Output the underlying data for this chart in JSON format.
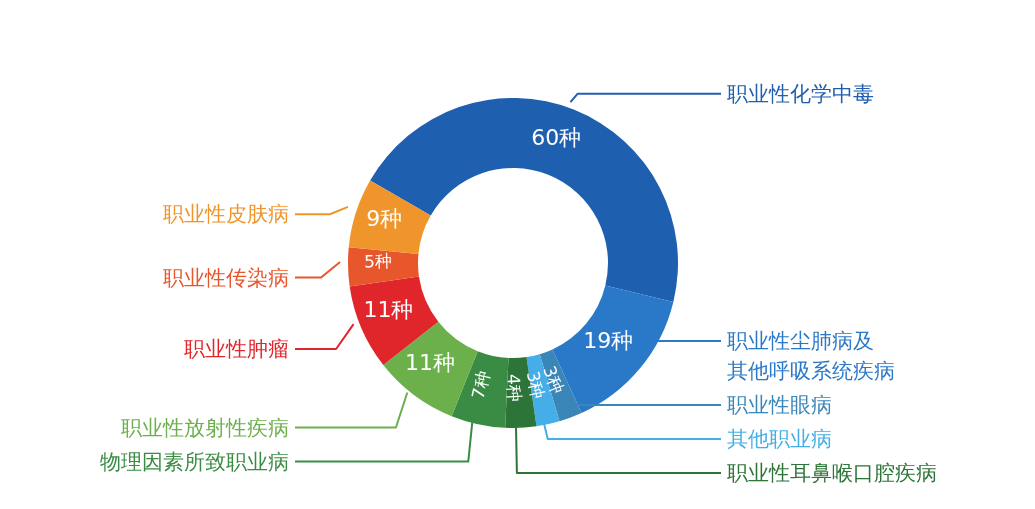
{
  "chart_data": {
    "type": "donut",
    "categories": [
      "职业性化学中毒",
      "职业性尘肺病及其他呼吸系统疾病",
      "职业性眼病",
      "其他职业病",
      "职业性耳鼻喉口腔疾病",
      "物理因素所致职业病",
      "职业性放射性疾病",
      "职业性肿瘤",
      "职业性传染病",
      "职业性皮肤病"
    ],
    "values": [
      60,
      19,
      3,
      3,
      4,
      7,
      11,
      11,
      5,
      9
    ],
    "value_labels": [
      "60种",
      "19种",
      "3种",
      "3种",
      "4种",
      "7种",
      "11种",
      "11种",
      "5种",
      "9种"
    ],
    "colors": [
      "#1f5fb0",
      "#2a78c8",
      "#3a86b8",
      "#45aee8",
      "#2c7438",
      "#3a8c44",
      "#6cb04c",
      "#e0262a",
      "#e8562c",
      "#ef952c"
    ]
  }
}
